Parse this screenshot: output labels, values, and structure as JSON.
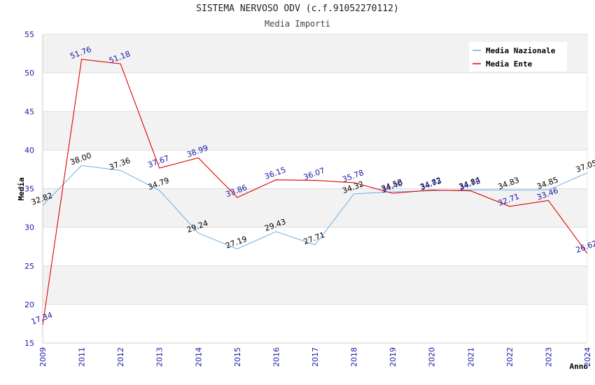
{
  "chart_data": {
    "type": "line",
    "title": "SISTEMA NERVOSO ODV (c.f.91052270112)",
    "subtitle": "Media Importi",
    "xlabel": "Anno",
    "ylabel": "Media",
    "categories": [
      "2009",
      "2011",
      "2012",
      "2013",
      "2014",
      "2015",
      "2016",
      "2017",
      "2018",
      "2019",
      "2020",
      "2021",
      "2022",
      "2023",
      "2024"
    ],
    "ylim": [
      15,
      55
    ],
    "yticks": [
      15,
      20,
      25,
      30,
      35,
      40,
      45,
      50,
      55
    ],
    "grid": true,
    "legend_position": "top-right",
    "series": [
      {
        "name": "Media Nazionale",
        "color": "#6aaee6",
        "label_color": "#000000",
        "values": [
          32.82,
          38.0,
          37.36,
          34.79,
          29.24,
          27.19,
          29.43,
          27.71,
          34.32,
          34.58,
          34.73,
          34.84,
          34.83,
          34.85,
          37.05
        ],
        "labels": [
          "32.82",
          "38.00",
          "37.36",
          "34.79",
          "29.24",
          "27.19",
          "29.43",
          "27.71",
          "34.32",
          "34.58",
          "34.73",
          "34.84",
          "34.83",
          "34.85",
          "37.05"
        ]
      },
      {
        "name": "Media Ente",
        "color": "#e00000",
        "label_color": "#1a1aa6",
        "values": [
          17.34,
          51.76,
          51.18,
          37.67,
          38.99,
          33.86,
          36.15,
          36.07,
          35.78,
          34.4,
          34.82,
          34.72,
          32.71,
          33.46,
          26.62
        ],
        "labels": [
          "17.34",
          "51.76",
          "51.18",
          "37.67",
          "38.99",
          "33.86",
          "36.15",
          "36.07",
          "35.78",
          "34.40",
          "34.82",
          "34.72",
          "32.71",
          "33.46",
          "26.62"
        ]
      }
    ]
  }
}
